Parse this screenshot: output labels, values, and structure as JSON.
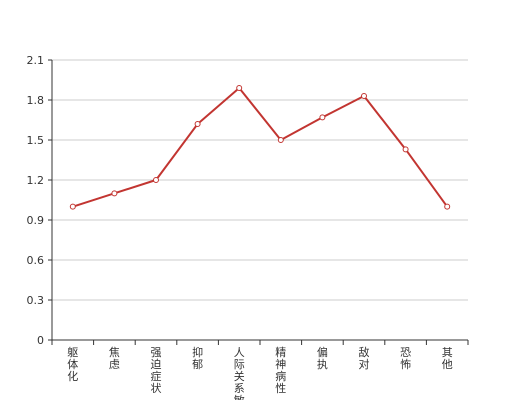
{
  "chart_data": {
    "type": "line",
    "categories": [
      "躯体化",
      "焦虑",
      "强迫症状",
      "抑郁",
      "人际关系敏感",
      "精神病性",
      "偏执",
      "敌对",
      "恐怖",
      "其他"
    ],
    "series": [
      {
        "values": [
          1.0,
          1.1,
          1.2,
          1.62,
          1.89,
          1.5,
          1.67,
          1.83,
          1.43,
          1.0
        ]
      }
    ],
    "title": "",
    "xlabel": "",
    "ylabel": "",
    "ylim": [
      0,
      2.1
    ],
    "yticks": [
      "0",
      "0.3",
      "0.6",
      "0.9",
      "1.2",
      "1.5",
      "1.8",
      "2.1"
    ],
    "grid": true,
    "legend": "none"
  },
  "colors": {
    "line": "#c23531",
    "marker_fill": "#ffffff",
    "grid": "#cccccc",
    "axis": "#333333"
  }
}
